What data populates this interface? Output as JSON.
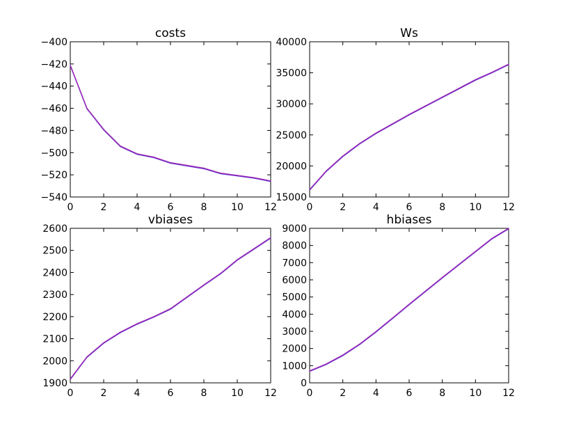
{
  "colors": {
    "line_primary": "#9b2bb5",
    "line_secondary": "#5a2bd0"
  },
  "chart_data": [
    {
      "type": "line",
      "title": "costs",
      "x": [
        0,
        1,
        2,
        3,
        4,
        5,
        6,
        7,
        8,
        9,
        10,
        11,
        12
      ],
      "series": [
        {
          "values": [
            -421,
            -460,
            -479,
            -494,
            -501,
            -504,
            -509,
            -511.5,
            -514,
            -518.5,
            -520.5,
            -522.5,
            -525.5
          ]
        }
      ],
      "xlim": [
        0,
        12
      ],
      "ylim": [
        -540,
        -400
      ],
      "xticks": [
        "0",
        "2",
        "4",
        "6",
        "8",
        "10",
        "12"
      ],
      "yticks": [
        "−540",
        "−520",
        "−500",
        "−480",
        "−460",
        "−440",
        "−420",
        "−400"
      ],
      "xlabel": "",
      "ylabel": "",
      "grid": false
    },
    {
      "type": "line",
      "title": "Ws",
      "x": [
        0,
        1,
        2,
        3,
        4,
        5,
        6,
        7,
        8,
        9,
        10,
        11,
        12
      ],
      "series": [
        {
          "values": [
            16200,
            19200,
            21600,
            23600,
            25300,
            26800,
            28300,
            29700,
            31100,
            32500,
            33900,
            35100,
            36400
          ]
        }
      ],
      "xlim": [
        0,
        12
      ],
      "ylim": [
        15000,
        40000
      ],
      "xticks": [
        "0",
        "2",
        "4",
        "6",
        "8",
        "10",
        "12"
      ],
      "yticks": [
        "15000",
        "20000",
        "25000",
        "30000",
        "35000",
        "40000"
      ],
      "xlabel": "",
      "ylabel": "",
      "grid": false
    },
    {
      "type": "line",
      "title": "vbiases",
      "x": [
        0,
        1,
        2,
        3,
        4,
        5,
        6,
        7,
        8,
        9,
        10,
        11,
        12
      ],
      "series": [
        {
          "values": [
            1918,
            2018,
            2082,
            2130,
            2168,
            2200,
            2236,
            2290,
            2344,
            2396,
            2458,
            2508,
            2558
          ]
        }
      ],
      "xlim": [
        0,
        12
      ],
      "ylim": [
        1900,
        2600
      ],
      "xticks": [
        "0",
        "2",
        "4",
        "6",
        "8",
        "10",
        "12"
      ],
      "yticks": [
        "1900",
        "2000",
        "2100",
        "2200",
        "2300",
        "2400",
        "2500",
        "2600"
      ],
      "xlabel": "",
      "ylabel": "",
      "grid": false
    },
    {
      "type": "line",
      "title": "hbiases",
      "x": [
        0,
        1,
        2,
        3,
        4,
        5,
        6,
        7,
        8,
        9,
        10,
        11,
        12
      ],
      "series": [
        {
          "values": [
            700,
            1100,
            1620,
            2250,
            2990,
            3780,
            4580,
            5360,
            6140,
            6900,
            7660,
            8420,
            9000
          ]
        }
      ],
      "xlim": [
        0,
        12
      ],
      "ylim": [
        0,
        9000
      ],
      "xticks": [
        "0",
        "2",
        "4",
        "6",
        "8",
        "10",
        "12"
      ],
      "yticks": [
        "0",
        "1000",
        "2000",
        "3000",
        "4000",
        "5000",
        "6000",
        "7000",
        "8000",
        "9000"
      ],
      "xlabel": "",
      "ylabel": "",
      "grid": false
    }
  ]
}
